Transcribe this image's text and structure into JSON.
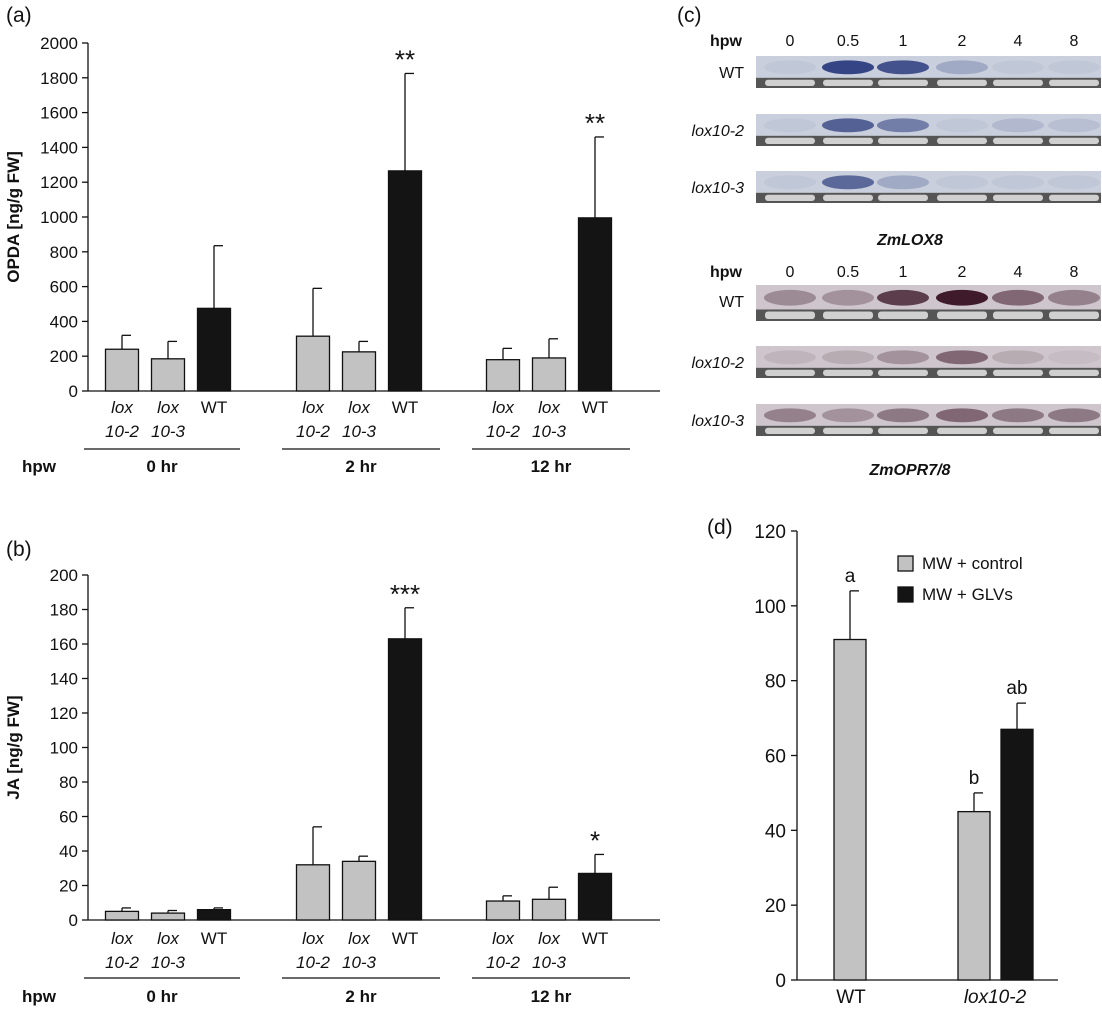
{
  "colors": {
    "gray_bar": "#c2c2c2",
    "black_bar": "#141414",
    "blot_bg": "#c9cfdc",
    "blot_bg2": "#cec6cc",
    "band_lox8": "#2c3c7e",
    "band_opr": "#3f1a2a",
    "gel_bg": "#555555"
  },
  "panels": {
    "a": {
      "label": "(a)"
    },
    "b": {
      "label": "(b)"
    },
    "c": {
      "label": "(c)"
    },
    "d": {
      "label": "(d)"
    }
  },
  "chart_data": [
    {
      "panel": "a",
      "type": "bar",
      "ylabel": "OPDA [ng/g FW]",
      "ylim": [
        0,
        2000
      ],
      "yticks": [
        0,
        200,
        400,
        600,
        800,
        1000,
        1200,
        1400,
        1600,
        1800,
        2000
      ],
      "group_axis_label": "hpw",
      "groups": [
        {
          "label": "0 hr",
          "bars": [
            {
              "line1": "lox",
              "line2": "10-2",
              "genotype": "lox10-2",
              "value": 240,
              "error": 80,
              "sig": ""
            },
            {
              "line1": "lox",
              "line2": "10-3",
              "genotype": "lox10-3",
              "value": 185,
              "error": 100,
              "sig": ""
            },
            {
              "line1": "WT",
              "line2": "",
              "genotype": "WT",
              "value": 475,
              "error": 360,
              "sig": ""
            }
          ]
        },
        {
          "label": "2 hr",
          "bars": [
            {
              "line1": "lox",
              "line2": "10-2",
              "genotype": "lox10-2",
              "value": 315,
              "error": 275,
              "sig": ""
            },
            {
              "line1": "lox",
              "line2": "10-3",
              "genotype": "lox10-3",
              "value": 225,
              "error": 60,
              "sig": ""
            },
            {
              "line1": "WT",
              "line2": "",
              "genotype": "WT",
              "value": 1265,
              "error": 560,
              "sig": "**"
            }
          ]
        },
        {
          "label": "12 hr",
          "bars": [
            {
              "line1": "lox",
              "line2": "10-2",
              "genotype": "lox10-2",
              "value": 180,
              "error": 65,
              "sig": ""
            },
            {
              "line1": "lox",
              "line2": "10-3",
              "genotype": "lox10-3",
              "value": 190,
              "error": 110,
              "sig": ""
            },
            {
              "line1": "WT",
              "line2": "",
              "genotype": "WT",
              "value": 995,
              "error": 465,
              "sig": "**"
            }
          ]
        }
      ]
    },
    {
      "panel": "b",
      "type": "bar",
      "ylabel": "JA [ng/g FW]",
      "ylim": [
        0,
        200
      ],
      "yticks": [
        0,
        20,
        40,
        60,
        80,
        100,
        120,
        140,
        160,
        180,
        200
      ],
      "group_axis_label": "hpw",
      "groups": [
        {
          "label": "0 hr",
          "bars": [
            {
              "line1": "lox",
              "line2": "10-2",
              "genotype": "lox10-2",
              "value": 5,
              "error": 2,
              "sig": ""
            },
            {
              "line1": "lox",
              "line2": "10-3",
              "genotype": "lox10-3",
              "value": 4,
              "error": 1.5,
              "sig": ""
            },
            {
              "line1": "WT",
              "line2": "",
              "genotype": "WT",
              "value": 6,
              "error": 1,
              "sig": ""
            }
          ]
        },
        {
          "label": "2 hr",
          "bars": [
            {
              "line1": "lox",
              "line2": "10-2",
              "genotype": "lox10-2",
              "value": 32,
              "error": 22,
              "sig": ""
            },
            {
              "line1": "lox",
              "line2": "10-3",
              "genotype": "lox10-3",
              "value": 34,
              "error": 3,
              "sig": ""
            },
            {
              "line1": "WT",
              "line2": "",
              "genotype": "WT",
              "value": 163,
              "error": 18,
              "sig": "***"
            }
          ]
        },
        {
          "label": "12 hr",
          "bars": [
            {
              "line1": "lox",
              "line2": "10-2",
              "genotype": "lox10-2",
              "value": 11,
              "error": 3,
              "sig": ""
            },
            {
              "line1": "lox",
              "line2": "10-3",
              "genotype": "lox10-3",
              "value": 12,
              "error": 7,
              "sig": ""
            },
            {
              "line1": "WT",
              "line2": "",
              "genotype": "WT",
              "value": 27,
              "error": 11,
              "sig": "*"
            }
          ]
        }
      ]
    },
    {
      "panel": "d",
      "type": "bar",
      "ylim": [
        0,
        120
      ],
      "yticks": [
        0,
        20,
        40,
        60,
        80,
        100,
        120
      ],
      "categories": [
        "WT",
        "lox10-2"
      ],
      "legend_position": "top-right",
      "series": [
        {
          "name": "MW + control",
          "color": "gray",
          "values": [
            91,
            45
          ],
          "errors": [
            13,
            5
          ],
          "letters": [
            "a",
            "b"
          ]
        },
        {
          "name": "MW + GLVs",
          "color": "black",
          "values": [
            null,
            67
          ],
          "errors": [
            null,
            7
          ],
          "letters": [
            "",
            "ab"
          ]
        }
      ]
    }
  ],
  "blots": {
    "timepoints_label": "hpw",
    "timepoints": [
      "0",
      "0.5",
      "1",
      "2",
      "4",
      "8"
    ],
    "rows": [
      "WT",
      "lox10-2",
      "lox10-3"
    ],
    "genes": [
      {
        "name": "ZmLOX8",
        "intensity": [
          [
            0.05,
            0.95,
            0.85,
            0.25,
            0.05,
            0.05
          ],
          [
            0.05,
            0.75,
            0.55,
            0.05,
            0.15,
            0.1
          ],
          [
            0.05,
            0.7,
            0.25,
            0.05,
            0.05,
            0.05
          ]
        ]
      },
      {
        "name": "ZmOPR7/8",
        "intensity": [
          [
            0.35,
            0.3,
            0.8,
            1.0,
            0.55,
            0.4
          ],
          [
            0.1,
            0.15,
            0.3,
            0.55,
            0.15,
            0.05
          ],
          [
            0.4,
            0.3,
            0.45,
            0.55,
            0.45,
            0.45
          ]
        ]
      }
    ]
  }
}
